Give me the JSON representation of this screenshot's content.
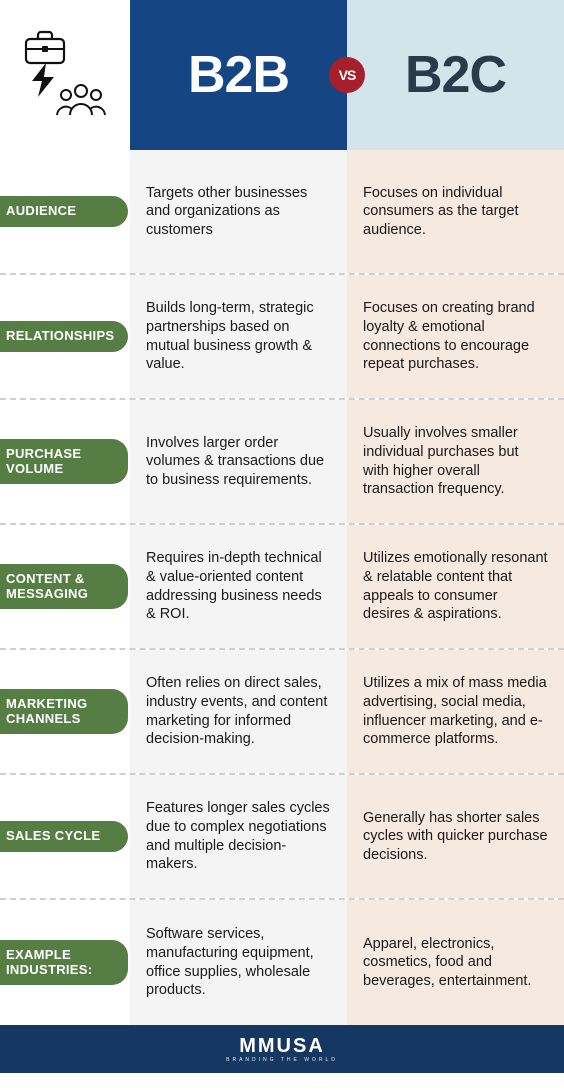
{
  "colors": {
    "b2b_header_bg": "#154683",
    "b2c_header_bg": "#d3e5eb",
    "b2b_col_bg": "#f4f4f4",
    "b2c_col_bg": "#f5e9e0",
    "label_bg": "#567e44",
    "vs_bg": "#a61f2b",
    "footer_bg": "#153863",
    "b2b_text": "#1a1a1a",
    "b2c_text": "#1a1a1a",
    "b2c_header_text": "#2a3a4a",
    "divider": "#cfcfcf"
  },
  "header": {
    "left_title": "B2B",
    "right_title": "B2C",
    "vs_label": "VS"
  },
  "rows": [
    {
      "label": "AUDIENCE",
      "b2b": "Targets other businesses and organizations as customers",
      "b2c": "Focuses on individual consumers as the target audience."
    },
    {
      "label": "RELATIONSHIPS",
      "b2b": "Builds long-term, strategic partnerships based on mutual business growth & value.",
      "b2c": "Focuses on creating brand loyalty & emotional connections to encourage repeat purchases."
    },
    {
      "label": "PURCHASE VOLUME",
      "b2b": "Involves larger order volumes & transactions due to business requirements.",
      "b2c": "Usually involves smaller individual purchases but with higher overall transaction frequency."
    },
    {
      "label": "CONTENT & MESSAGING",
      "b2b": "Requires in-depth technical & value-oriented content addressing business needs & ROI.",
      "b2c": "Utilizes emotionally resonant & relatable content that appeals to consumer desires & aspirations."
    },
    {
      "label": "MARKETING CHANNELS",
      "b2b": "Often relies on direct sales, industry events, and content marketing for informed decision-making.",
      "b2c": "Utilizes a mix of mass media advertising, social media, influencer marketing, and e-commerce platforms."
    },
    {
      "label": "SALES CYCLE",
      "b2b": "Features longer sales cycles due to complex negotiations and multiple decision-makers.",
      "b2c": "Generally has shorter sales cycles with quicker purchase decisions."
    },
    {
      "label": "EXAMPLE INDUSTRIES:",
      "b2b": "Software services, manufacturing equipment, office supplies, wholesale products.",
      "b2c": "Apparel, electronics, cosmetics, food and beverages, entertainment."
    }
  ],
  "footer": {
    "brand": "MMUSA",
    "tagline": "BRANDING THE WORLD"
  }
}
